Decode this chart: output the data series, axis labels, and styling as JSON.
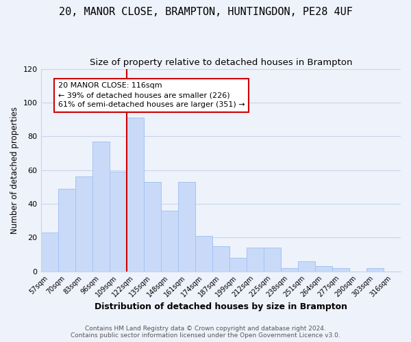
{
  "title": "20, MANOR CLOSE, BRAMPTON, HUNTINGDON, PE28 4UF",
  "subtitle": "Size of property relative to detached houses in Brampton",
  "xlabel": "Distribution of detached houses by size in Brampton",
  "ylabel": "Number of detached properties",
  "bar_labels": [
    "57sqm",
    "70sqm",
    "83sqm",
    "96sqm",
    "109sqm",
    "122sqm",
    "135sqm",
    "148sqm",
    "161sqm",
    "174sqm",
    "187sqm",
    "199sqm",
    "212sqm",
    "225sqm",
    "238sqm",
    "251sqm",
    "264sqm",
    "277sqm",
    "290sqm",
    "303sqm",
    "316sqm"
  ],
  "bar_values": [
    23,
    49,
    56,
    77,
    59,
    91,
    53,
    36,
    53,
    21,
    15,
    8,
    14,
    14,
    2,
    6,
    3,
    2,
    0,
    2,
    0
  ],
  "bar_color": "#c9daf8",
  "bar_edge_color": "#a4c2f4",
  "vline_x_index": 5,
  "vline_color": "#cc0000",
  "annotation_title": "20 MANOR CLOSE: 116sqm",
  "annotation_line1": "← 39% of detached houses are smaller (226)",
  "annotation_line2": "61% of semi-detached houses are larger (351) →",
  "annotation_box_color": "white",
  "annotation_box_edge": "#cc0000",
  "ylim": [
    0,
    120
  ],
  "yticks": [
    0,
    20,
    40,
    60,
    80,
    100,
    120
  ],
  "footer1": "Contains HM Land Registry data © Crown copyright and database right 2024.",
  "footer2": "Contains public sector information licensed under the Open Government Licence v3.0.",
  "bg_color": "#eef2fb",
  "plot_bg_color": "#eef2fb",
  "title_fontsize": 11,
  "subtitle_fontsize": 9.5,
  "grid_color": "#c8d4e8"
}
